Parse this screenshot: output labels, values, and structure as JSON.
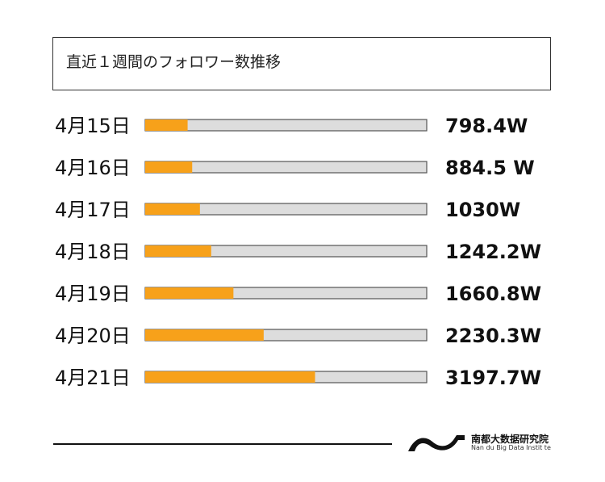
{
  "title": "直近１週間のフォロワー数推移",
  "colors": {
    "bar_fill": "#f7a11a",
    "bar_track": "#dddddd",
    "bar_border": "#555555",
    "text": "#111111"
  },
  "chart_data": {
    "type": "bar",
    "orientation": "horizontal",
    "categories": [
      "4月15日",
      "4月16日",
      "4月17日",
      "4月18日",
      "4月19日",
      "4月20日",
      "4月21日"
    ],
    "values": [
      798.4,
      884.5,
      1030,
      1242.2,
      1660.8,
      2230.3,
      3197.7
    ],
    "value_labels": [
      "798.4W",
      "884.5 W",
      "1030W",
      "1242.2W",
      "1660.8W",
      "2230.3W",
      "3197.7W"
    ],
    "unit": "W",
    "xlim": [
      0,
      5300
    ]
  },
  "logo": {
    "name_cn": "南都大数据研究院",
    "name_en": "Nan du Big Data Instit te",
    "icon": "wave-logo-icon"
  }
}
